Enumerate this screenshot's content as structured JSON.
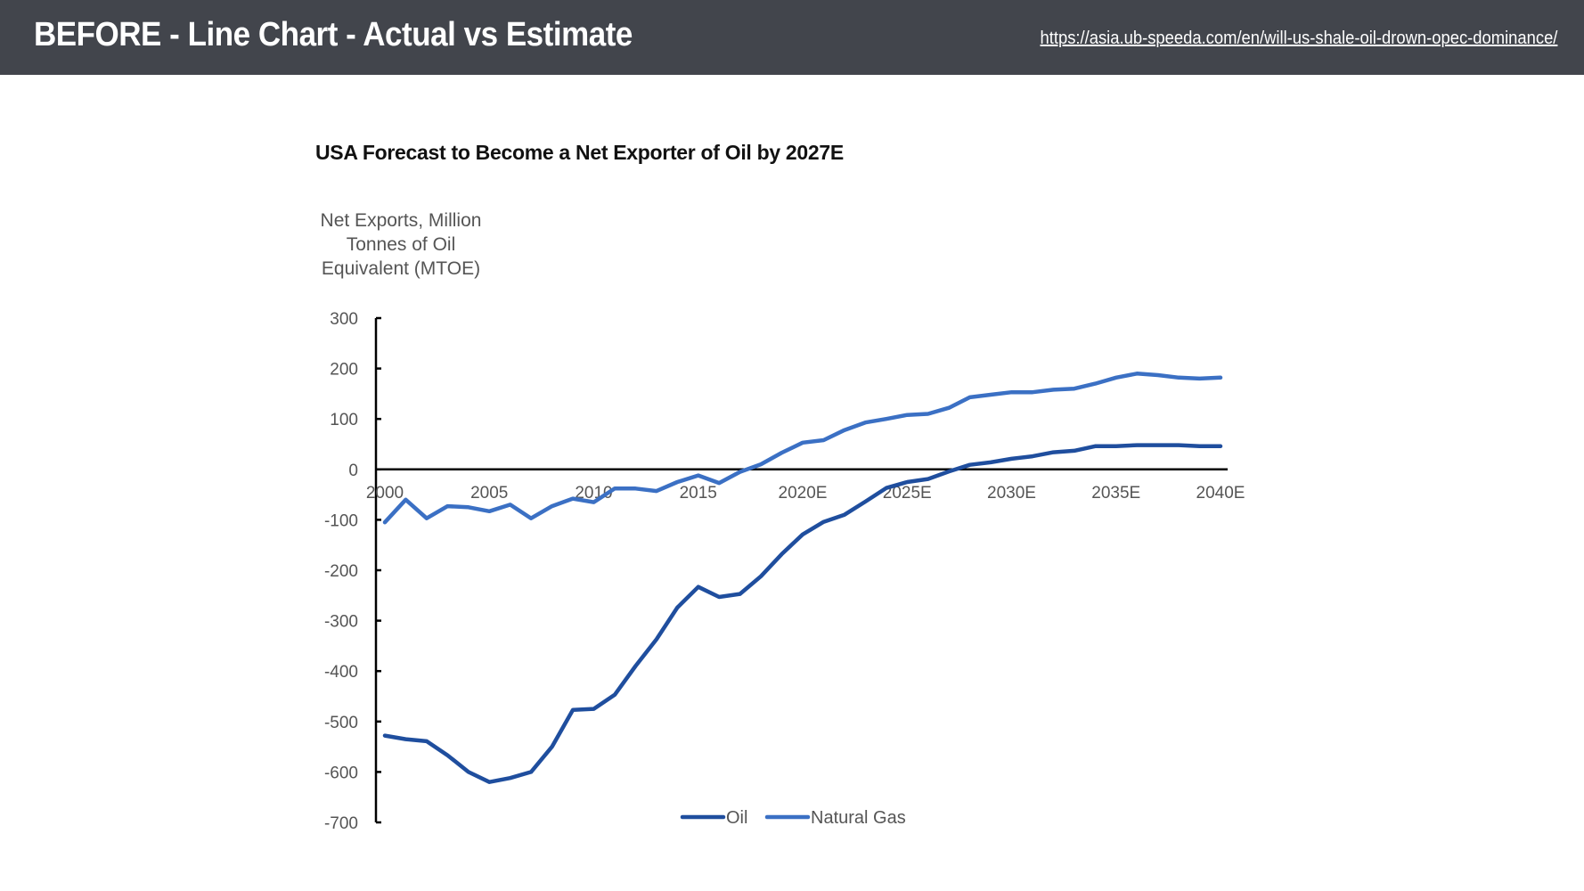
{
  "header": {
    "title": "BEFORE - Line Chart - Actual vs Estimate",
    "source_url": "https://asia.ub-speeda.com/en/will-us-shale-oil-drown-opec-dominance/"
  },
  "colors": {
    "header_bg": "#42454c",
    "oil": "#1f4e9e",
    "natural_gas": "#3b70c4",
    "axis": "#000000",
    "label": "#555555"
  },
  "chart_data": {
    "type": "line",
    "title": "USA Forecast to Become a Net Exporter of Oil by 2027E",
    "ylabel": "Net Exports, Million\nTonnes of Oil\nEquivalent (MTOE)",
    "xlabel": "",
    "ylim": [
      -700,
      300
    ],
    "yticks": [
      300,
      200,
      100,
      0,
      -100,
      -200,
      -300,
      -400,
      -500,
      -600,
      -700
    ],
    "xticks": [
      "2000",
      "2005",
      "2010",
      "2015",
      "2020E",
      "2025E",
      "2030E",
      "2035E",
      "2040E"
    ],
    "x": [
      2000,
      2001,
      2002,
      2003,
      2004,
      2005,
      2006,
      2007,
      2008,
      2009,
      2010,
      2011,
      2012,
      2013,
      2014,
      2015,
      2016,
      2017,
      2018,
      2019,
      2020,
      2021,
      2022,
      2023,
      2024,
      2025,
      2026,
      2027,
      2028,
      2029,
      2030,
      2031,
      2032,
      2033,
      2034,
      2035,
      2036,
      2037,
      2038,
      2039,
      2040
    ],
    "grid": false,
    "legend_position": "bottom",
    "series": [
      {
        "name": "Oil",
        "values": [
          -528,
          -535,
          -539,
          -567,
          -600,
          -620,
          -612,
          -600,
          -550,
          -477,
          -475,
          -447,
          -390,
          -337,
          -274,
          -233,
          -253,
          -247,
          -212,
          -168,
          -129,
          -104,
          -90,
          -64,
          -37,
          -25,
          -19,
          -4,
          9,
          14,
          21,
          26,
          34,
          37,
          46,
          46,
          48,
          48,
          48,
          46,
          46
        ]
      },
      {
        "name": "Natural Gas",
        "values": [
          -105,
          -60,
          -97,
          -73,
          -75,
          -83,
          -70,
          -97,
          -73,
          -58,
          -65,
          -38,
          -38,
          -43,
          -25,
          -12,
          -27,
          -5,
          10,
          33,
          53,
          58,
          78,
          93,
          100,
          108,
          110,
          122,
          143,
          148,
          153,
          153,
          158,
          160,
          170,
          182,
          190,
          187,
          182,
          180,
          182
        ]
      }
    ]
  }
}
